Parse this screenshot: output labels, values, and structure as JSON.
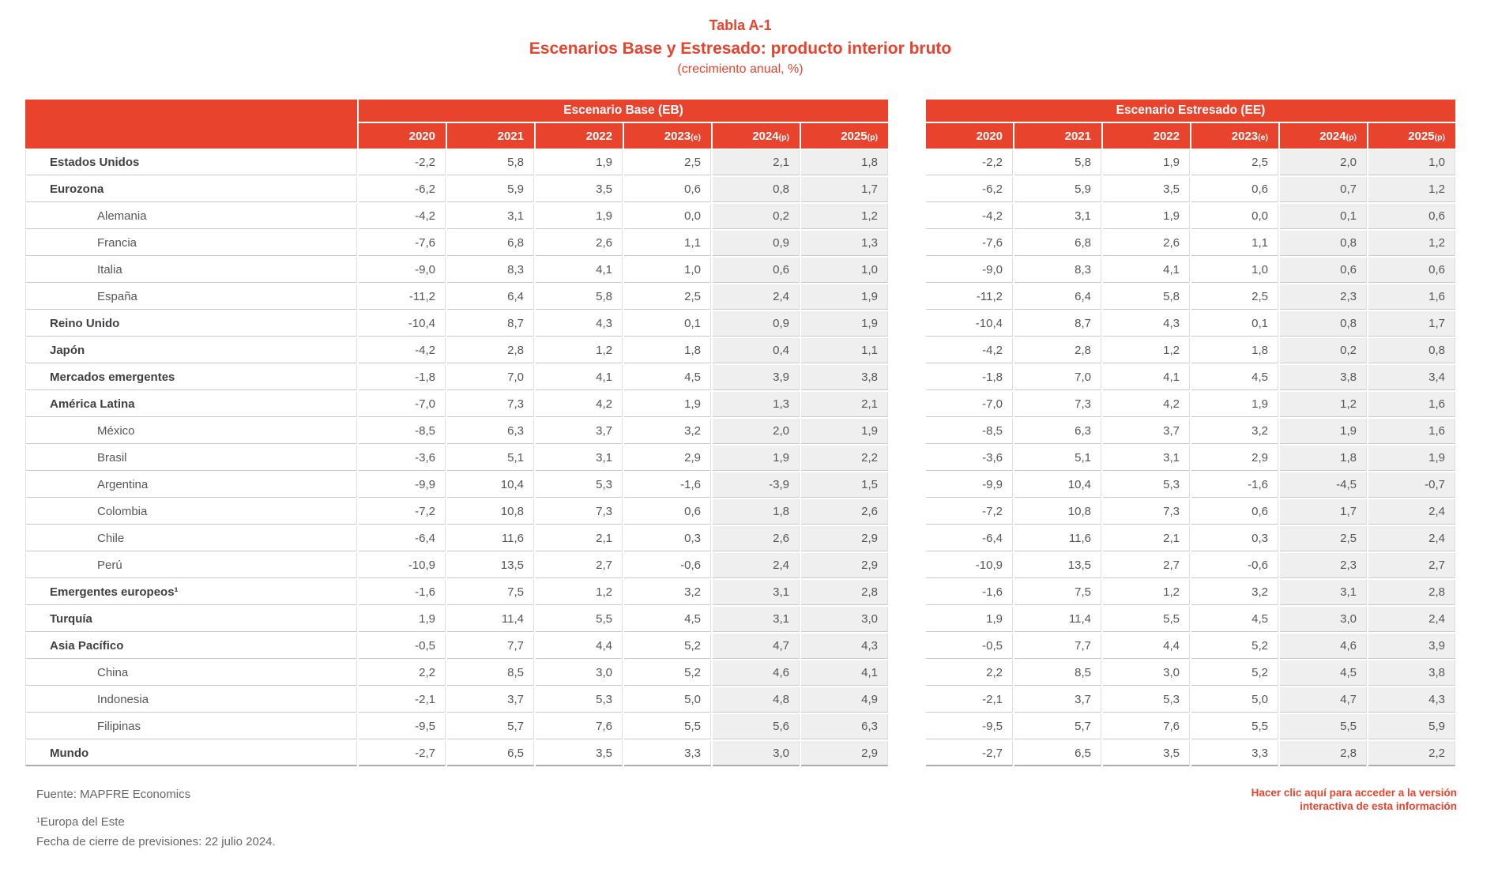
{
  "title": {
    "number": "Tabla A-1",
    "main": "Escenarios Base y Estresado: producto interior bruto",
    "sub": "(crecimiento anual, %)"
  },
  "colors": {
    "accent_red": "#E8432D",
    "shaded_cell": "#EFEFEF",
    "body_text": "#55565A"
  },
  "table": {
    "panels": [
      {
        "title": "Escenario Base (EB)",
        "years": [
          {
            "label": "2020",
            "suffix": ""
          },
          {
            "label": "2021",
            "suffix": ""
          },
          {
            "label": "2022",
            "suffix": ""
          },
          {
            "label": "2023",
            "suffix": "(e)"
          },
          {
            "label": "2024",
            "suffix": "(p)"
          },
          {
            "label": "2025",
            "suffix": "(p)"
          }
        ]
      },
      {
        "title": "Escenario Estresado (EE)",
        "years": [
          {
            "label": "2020",
            "suffix": ""
          },
          {
            "label": "2021",
            "suffix": ""
          },
          {
            "label": "2022",
            "suffix": ""
          },
          {
            "label": "2023",
            "suffix": "(e)"
          },
          {
            "label": "2024",
            "suffix": "(p)"
          },
          {
            "label": "2025",
            "suffix": "(p)"
          }
        ]
      }
    ],
    "shaded_year_indexes": [
      4,
      5
    ],
    "rows": [
      {
        "label": "Estados Unidos",
        "indent": false,
        "eb": [
          "-2,2",
          "5,8",
          "1,9",
          "2,5",
          "2,1",
          "1,8"
        ],
        "ee": [
          "-2,2",
          "5,8",
          "1,9",
          "2,5",
          "2,0",
          "1,0"
        ]
      },
      {
        "label": "Eurozona",
        "indent": false,
        "eb": [
          "-6,2",
          "5,9",
          "3,5",
          "0,6",
          "0,8",
          "1,7"
        ],
        "ee": [
          "-6,2",
          "5,9",
          "3,5",
          "0,6",
          "0,7",
          "1,2"
        ]
      },
      {
        "label": "Alemania",
        "indent": true,
        "eb": [
          "-4,2",
          "3,1",
          "1,9",
          "0,0",
          "0,2",
          "1,2"
        ],
        "ee": [
          "-4,2",
          "3,1",
          "1,9",
          "0,0",
          "0,1",
          "0,6"
        ]
      },
      {
        "label": "Francia",
        "indent": true,
        "eb": [
          "-7,6",
          "6,8",
          "2,6",
          "1,1",
          "0,9",
          "1,3"
        ],
        "ee": [
          "-7,6",
          "6,8",
          "2,6",
          "1,1",
          "0,8",
          "1,2"
        ]
      },
      {
        "label": "Italia",
        "indent": true,
        "eb": [
          "-9,0",
          "8,3",
          "4,1",
          "1,0",
          "0,6",
          "1,0"
        ],
        "ee": [
          "-9,0",
          "8,3",
          "4,1",
          "1,0",
          "0,6",
          "0,6"
        ]
      },
      {
        "label": "España",
        "indent": true,
        "eb": [
          "-11,2",
          "6,4",
          "5,8",
          "2,5",
          "2,4",
          "1,9"
        ],
        "ee": [
          "-11,2",
          "6,4",
          "5,8",
          "2,5",
          "2,3",
          "1,6"
        ]
      },
      {
        "label": "Reino Unido",
        "indent": false,
        "eb": [
          "-10,4",
          "8,7",
          "4,3",
          "0,1",
          "0,9",
          "1,9"
        ],
        "ee": [
          "-10,4",
          "8,7",
          "4,3",
          "0,1",
          "0,8",
          "1,7"
        ]
      },
      {
        "label": "Japón",
        "indent": false,
        "eb": [
          "-4,2",
          "2,8",
          "1,2",
          "1,8",
          "0,4",
          "1,1"
        ],
        "ee": [
          "-4,2",
          "2,8",
          "1,2",
          "1,8",
          "0,2",
          "0,8"
        ]
      },
      {
        "label": "Mercados emergentes",
        "indent": false,
        "eb": [
          "-1,8",
          "7,0",
          "4,1",
          "4,5",
          "3,9",
          "3,8"
        ],
        "ee": [
          "-1,8",
          "7,0",
          "4,1",
          "4,5",
          "3,8",
          "3,4"
        ]
      },
      {
        "label": "América Latina",
        "indent": false,
        "eb": [
          "-7,0",
          "7,3",
          "4,2",
          "1,9",
          "1,3",
          "2,1"
        ],
        "ee": [
          "-7,0",
          "7,3",
          "4,2",
          "1,9",
          "1,2",
          "1,6"
        ]
      },
      {
        "label": "México",
        "indent": true,
        "eb": [
          "-8,5",
          "6,3",
          "3,7",
          "3,2",
          "2,0",
          "1,9"
        ],
        "ee": [
          "-8,5",
          "6,3",
          "3,7",
          "3,2",
          "1,9",
          "1,6"
        ]
      },
      {
        "label": "Brasil",
        "indent": true,
        "eb": [
          "-3,6",
          "5,1",
          "3,1",
          "2,9",
          "1,9",
          "2,2"
        ],
        "ee": [
          "-3,6",
          "5,1",
          "3,1",
          "2,9",
          "1,8",
          "1,9"
        ]
      },
      {
        "label": "Argentina",
        "indent": true,
        "eb": [
          "-9,9",
          "10,4",
          "5,3",
          "-1,6",
          "-3,9",
          "1,5"
        ],
        "ee": [
          "-9,9",
          "10,4",
          "5,3",
          "-1,6",
          "-4,5",
          "-0,7"
        ]
      },
      {
        "label": "Colombia",
        "indent": true,
        "eb": [
          "-7,2",
          "10,8",
          "7,3",
          "0,6",
          "1,8",
          "2,6"
        ],
        "ee": [
          "-7,2",
          "10,8",
          "7,3",
          "0,6",
          "1,7",
          "2,4"
        ]
      },
      {
        "label": "Chile",
        "indent": true,
        "eb": [
          "-6,4",
          "11,6",
          "2,1",
          "0,3",
          "2,6",
          "2,9"
        ],
        "ee": [
          "-6,4",
          "11,6",
          "2,1",
          "0,3",
          "2,5",
          "2,4"
        ]
      },
      {
        "label": "Perú",
        "indent": true,
        "eb": [
          "-10,9",
          "13,5",
          "2,7",
          "-0,6",
          "2,4",
          "2,9"
        ],
        "ee": [
          "-10,9",
          "13,5",
          "2,7",
          "-0,6",
          "2,3",
          "2,7"
        ]
      },
      {
        "label": "Emergentes europeos¹",
        "indent": false,
        "eb": [
          "-1,6",
          "7,5",
          "1,2",
          "3,2",
          "3,1",
          "2,8"
        ],
        "ee": [
          "-1,6",
          "7,5",
          "1,2",
          "3,2",
          "3,1",
          "2,8"
        ]
      },
      {
        "label": "Turquía",
        "indent": false,
        "eb": [
          "1,9",
          "11,4",
          "5,5",
          "4,5",
          "3,1",
          "3,0"
        ],
        "ee": [
          "1,9",
          "11,4",
          "5,5",
          "4,5",
          "3,0",
          "2,4"
        ]
      },
      {
        "label": "Asia Pacífico",
        "indent": false,
        "eb": [
          "-0,5",
          "7,7",
          "4,4",
          "5,2",
          "4,7",
          "4,3"
        ],
        "ee": [
          "-0,5",
          "7,7",
          "4,4",
          "5,2",
          "4,6",
          "3,9"
        ]
      },
      {
        "label": "China",
        "indent": true,
        "eb": [
          "2,2",
          "8,5",
          "3,0",
          "5,2",
          "4,6",
          "4,1"
        ],
        "ee": [
          "2,2",
          "8,5",
          "3,0",
          "5,2",
          "4,5",
          "3,8"
        ]
      },
      {
        "label": "Indonesia",
        "indent": true,
        "eb": [
          "-2,1",
          "3,7",
          "5,3",
          "5,0",
          "4,8",
          "4,9"
        ],
        "ee": [
          "-2,1",
          "3,7",
          "5,3",
          "5,0",
          "4,7",
          "4,3"
        ]
      },
      {
        "label": "Filipinas",
        "indent": true,
        "eb": [
          "-9,5",
          "5,7",
          "7,6",
          "5,5",
          "5,6",
          "6,3"
        ],
        "ee": [
          "-9,5",
          "5,7",
          "7,6",
          "5,5",
          "5,5",
          "5,9"
        ]
      },
      {
        "label": "Mundo",
        "indent": false,
        "eb": [
          "-2,7",
          "6,5",
          "3,5",
          "3,3",
          "3,0",
          "2,9"
        ],
        "ee": [
          "-2,7",
          "6,5",
          "3,5",
          "3,3",
          "2,8",
          "2,2"
        ]
      }
    ]
  },
  "footer": {
    "source": "Fuente: MAPFRE Economics",
    "footnote1": "¹Europa del Este",
    "footnote2": "Fecha de cierre de previsiones: 22 julio 2024.",
    "link_line1": "Hacer clic aquí para acceder a la versión",
    "link_line2": "interactiva de esta información"
  }
}
